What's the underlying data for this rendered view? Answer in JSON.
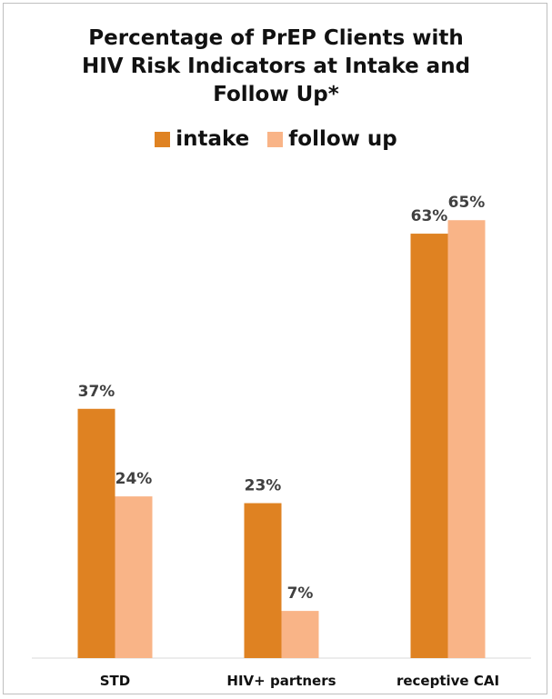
{
  "chart_data": {
    "type": "bar",
    "title_lines": [
      "Percentage of PrEP Clients with",
      "HIV Risk Indicators at Intake and",
      "Follow Up*"
    ],
    "categories": [
      "STD",
      "HIV+ partners",
      "receptive CAI"
    ],
    "series": [
      {
        "name": "intake",
        "values": [
          37,
          23,
          63
        ],
        "labels": [
          "37%",
          "23%",
          "63%"
        ],
        "color": "#df8222"
      },
      {
        "name": "follow up",
        "values": [
          24,
          7,
          65
        ],
        "labels": [
          "24%",
          "7%",
          "65%"
        ],
        "color": "#f9b487"
      }
    ],
    "ylim": [
      0,
      68
    ],
    "grid": false,
    "legend_position": "top"
  }
}
